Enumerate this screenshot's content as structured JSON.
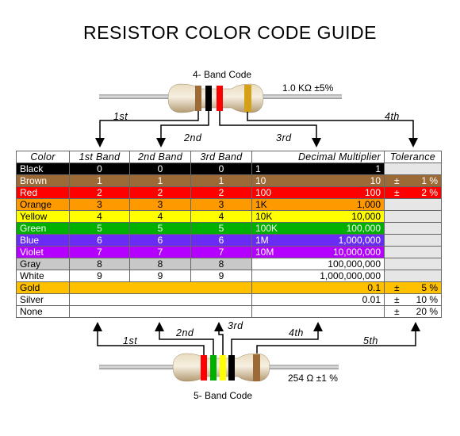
{
  "title": "RESISTOR COLOR CODE GUIDE",
  "top_resistor": {
    "caption": "4- Band Code",
    "value": "1.0 KΩ  ±5%"
  },
  "bottom_resistor": {
    "caption": "5- Band Code",
    "value": "254 Ω  ±1 %"
  },
  "band_labels_top": {
    "b1": "1st",
    "b2": "2nd",
    "b3": "3rd",
    "b4": "4th"
  },
  "band_labels_bottom": {
    "b1": "1st",
    "b2": "2nd",
    "b3": "3rd",
    "b4": "4th",
    "b5": "5th"
  },
  "headers": {
    "color": "Color",
    "band1": "1st Band",
    "band2": "2nd Band",
    "band3": "3rd Band",
    "multiplier": "Decimal Multiplier",
    "tolerance": "Tolerance"
  },
  "colors": {
    "black": "#000000",
    "brown": "#9b6a36",
    "red": "#ff0000",
    "orange": "#ff9900",
    "yellow": "#ffff00",
    "green": "#00b000",
    "blue": "#6a2cf5",
    "violet": "#b400ff",
    "gray": "#c8c8c8",
    "white": "#ffffff",
    "gold": "#ffc000",
    "silver": "#ffffff",
    "tolerance_blank": "#e6e6e6"
  },
  "rows": [
    {
      "name": "Black",
      "d1": "0",
      "d2": "0",
      "d3": "0",
      "m_left": "1",
      "m_right": "1",
      "tol_sign": "",
      "tol_val": ""
    },
    {
      "name": "Brown",
      "d1": "1",
      "d2": "1",
      "d3": "1",
      "m_left": "10",
      "m_right": "10",
      "tol_sign": "±",
      "tol_val": "1 %"
    },
    {
      "name": "Red",
      "d1": "2",
      "d2": "2",
      "d3": "2",
      "m_left": "100",
      "m_right": "100",
      "tol_sign": "±",
      "tol_val": "2 %"
    },
    {
      "name": "Orange",
      "d1": "3",
      "d2": "3",
      "d3": "3",
      "m_left": "1K",
      "m_right": "1,000",
      "tol_sign": "",
      "tol_val": ""
    },
    {
      "name": "Yellow",
      "d1": "4",
      "d2": "4",
      "d3": "4",
      "m_left": "10K",
      "m_right": "10,000",
      "tol_sign": "",
      "tol_val": ""
    },
    {
      "name": "Green",
      "d1": "5",
      "d2": "5",
      "d3": "5",
      "m_left": "100K",
      "m_right": "100,000",
      "tol_sign": "",
      "tol_val": ""
    },
    {
      "name": "Blue",
      "d1": "6",
      "d2": "6",
      "d3": "6",
      "m_left": "1M",
      "m_right": "1,000,000",
      "tol_sign": "",
      "tol_val": ""
    },
    {
      "name": "Violet",
      "d1": "7",
      "d2": "7",
      "d3": "7",
      "m_left": "10M",
      "m_right": "10,000,000",
      "tol_sign": "",
      "tol_val": ""
    },
    {
      "name": "Gray",
      "d1": "8",
      "d2": "8",
      "d3": "8",
      "m_left": "",
      "m_right": "100,000,000",
      "tol_sign": "",
      "tol_val": ""
    },
    {
      "name": "White",
      "d1": "9",
      "d2": "9",
      "d3": "9",
      "m_left": "",
      "m_right": "1,000,000,000",
      "tol_sign": "",
      "tol_val": ""
    },
    {
      "name": "Gold",
      "d1": "",
      "d2": "",
      "d3": "",
      "m_left": "",
      "m_right": "0.1",
      "tol_sign": "±",
      "tol_val": "5 %"
    },
    {
      "name": "Silver",
      "d1": "",
      "d2": "",
      "d3": "",
      "m_left": "",
      "m_right": "0.01",
      "tol_sign": "±",
      "tol_val": "10 %"
    },
    {
      "name": "None",
      "d1": "",
      "d2": "",
      "d3": "",
      "m_left": "",
      "m_right": "",
      "tol_sign": "±",
      "tol_val": "20 %"
    }
  ]
}
